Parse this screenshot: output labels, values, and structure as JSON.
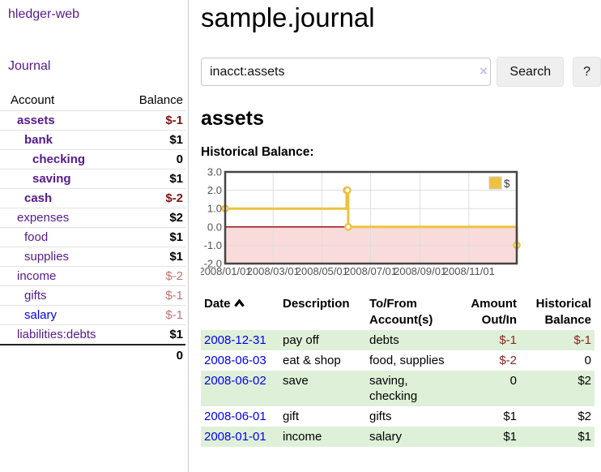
{
  "colors": {
    "link_purple": "#551a8b",
    "link_blue": "#0000ee",
    "negative_strong": "#7d1414",
    "negative_weak": "#c27272",
    "table_negative": "#8d2323",
    "stripe_green": "#dff0d8",
    "chart_line_gold": "#EDC240",
    "chart_negative_fill": "#f9dbdb",
    "chart_zero_line": "#8b0000",
    "chart_border": "#444444",
    "grid": "#dddddd",
    "axis_text": "#545454"
  },
  "sidebar": {
    "title": "hledger-web",
    "journal_label": "Journal",
    "headers": {
      "account": "Account",
      "balance": "Balance"
    },
    "accounts": [
      {
        "name": "assets",
        "level": 0,
        "bold": true,
        "balance": "$-1",
        "balance_style": "neg-strong"
      },
      {
        "name": "bank",
        "level": 1,
        "bold": true,
        "balance": "$1",
        "balance_style": "pos"
      },
      {
        "name": "checking",
        "level": 2,
        "bold": true,
        "balance": "0",
        "balance_style": "pos"
      },
      {
        "name": "saving",
        "level": 2,
        "bold": true,
        "balance": "$1",
        "balance_style": "pos"
      },
      {
        "name": "cash",
        "level": 1,
        "bold": true,
        "balance": "$-2",
        "balance_style": "neg-strong"
      },
      {
        "name": "expenses",
        "level": 0,
        "bold": false,
        "balance": "$2",
        "balance_style": "pos"
      },
      {
        "name": "food",
        "level": 1,
        "bold": false,
        "balance": "$1",
        "balance_style": "pos"
      },
      {
        "name": "supplies",
        "level": 1,
        "bold": false,
        "balance": "$1",
        "balance_style": "pos"
      },
      {
        "name": "income",
        "level": 0,
        "bold": false,
        "balance": "$-2",
        "balance_style": "neg-weak"
      },
      {
        "name": "gifts",
        "level": 1,
        "bold": false,
        "balance": "$-1",
        "balance_style": "neg-weak"
      },
      {
        "name": "salary",
        "level": 1,
        "bold": false,
        "link_color": "blue",
        "balance": "$-1",
        "balance_style": "neg-weak"
      },
      {
        "name": "liabilities:debts",
        "level": 0,
        "bold": false,
        "balance": "$1",
        "balance_style": "pos"
      }
    ],
    "total": "0"
  },
  "main": {
    "title": "sample.journal",
    "search": {
      "value": "inacct:assets",
      "clear_icon": "×",
      "button_label": "Search",
      "help_label": "?"
    },
    "account_heading": "assets",
    "chart_heading": "Historical Balance:"
  },
  "chart_data": {
    "type": "line",
    "title": "Historical Balance:",
    "steps": true,
    "x_range": [
      "2008-01-01",
      "2008-12-31"
    ],
    "ylim": [
      -2,
      3
    ],
    "y_ticks": [
      "3.0",
      "2.0",
      "1.0",
      "0.0",
      "-1.0",
      "-2.0"
    ],
    "x_ticks": [
      {
        "date": "2008-01-01",
        "label": "2008/01/01"
      },
      {
        "date": "2008-03-01",
        "label": "2008/03/01"
      },
      {
        "date": "2008-05-01",
        "label": "2008/05/01"
      },
      {
        "date": "2008-07-01",
        "label": "2008/07/01"
      },
      {
        "date": "2008-09-01",
        "label": "2008/09/01"
      },
      {
        "date": "2008-11-01",
        "label": "2008/11/01"
      }
    ],
    "series": [
      {
        "name": "$",
        "color": "#EDC240",
        "points": [
          {
            "date": "2008-01-01",
            "value": 1
          },
          {
            "date": "2008-06-01",
            "value": 2
          },
          {
            "date": "2008-06-02",
            "value": 2
          },
          {
            "date": "2008-06-03",
            "value": 0
          },
          {
            "date": "2008-12-31",
            "value": -1
          }
        ]
      }
    ],
    "legend": {
      "label": "$",
      "position": "top-right"
    },
    "grid": true,
    "negative_region_shaded": true
  },
  "register": {
    "headers": {
      "date": "Date",
      "description": "Description",
      "tofrom_line1": "To/From",
      "tofrom_line2": "Account(s)",
      "amount_line1": "Amount",
      "amount_line2": "Out/In",
      "hist_line1": "Historical",
      "hist_line2": "Balance"
    },
    "rows": [
      {
        "date": "2008-12-31",
        "description": "pay off",
        "accounts": "debts",
        "amount": "$-1",
        "amount_neg": true,
        "balance": "$-1",
        "balance_neg": true
      },
      {
        "date": "2008-06-03",
        "description": "eat & shop",
        "accounts": "food, supplies",
        "amount": "$-2",
        "amount_neg": true,
        "balance": "0",
        "balance_neg": false
      },
      {
        "date": "2008-06-02",
        "description": "save",
        "accounts": "saving, checking",
        "amount": "0",
        "amount_neg": false,
        "balance": "$2",
        "balance_neg": false
      },
      {
        "date": "2008-06-01",
        "description": "gift",
        "accounts": "gifts",
        "amount": "$1",
        "amount_neg": false,
        "balance": "$2",
        "balance_neg": false
      },
      {
        "date": "2008-01-01",
        "description": "income",
        "accounts": "salary",
        "amount": "$1",
        "amount_neg": false,
        "balance": "$1",
        "balance_neg": false
      }
    ]
  }
}
